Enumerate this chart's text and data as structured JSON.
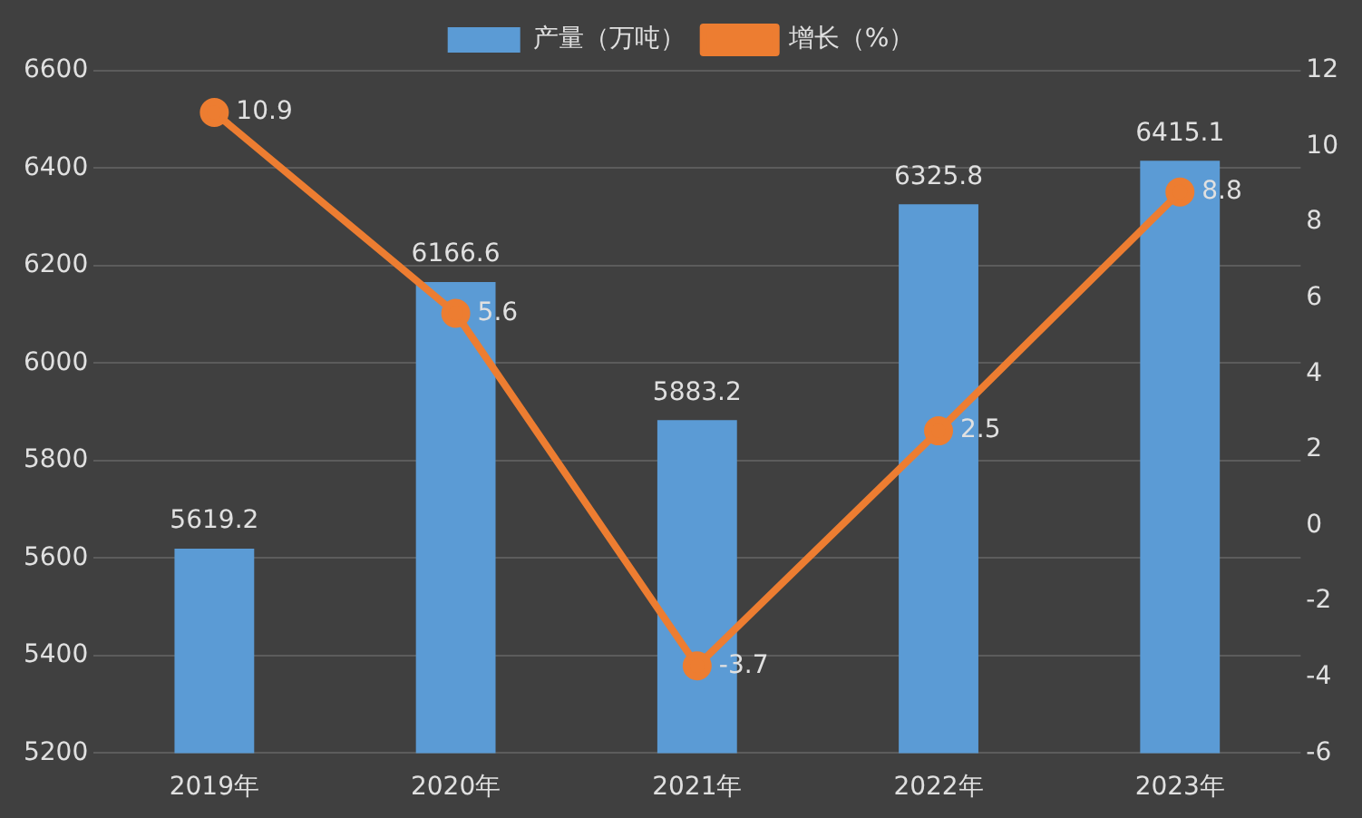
{
  "chart_data": {
    "type": "bar",
    "categories": [
      "2019年",
      "2020年",
      "2021年",
      "2022年",
      "2023年"
    ],
    "series": [
      {
        "name": "产量（万吨）",
        "color": "#5b9bd5",
        "values": [
          5619.2,
          6166.6,
          5883.2,
          6325.8,
          6415.1
        ]
      },
      {
        "name": "增长（%）",
        "type": "line",
        "axis": "y2",
        "color": "#ed7d31",
        "values": [
          10.9,
          5.6,
          -3.7,
          2.5,
          8.8
        ]
      }
    ],
    "ylim": [
      5200,
      6600
    ],
    "yticks": [
      5200,
      5400,
      5600,
      5800,
      6000,
      6200,
      6400,
      6600
    ],
    "y2lim": [
      -6,
      12
    ],
    "y2ticks": [
      -6,
      -4,
      -2,
      0,
      2,
      4,
      6,
      8,
      10,
      12
    ],
    "grid": "y",
    "legend": "top",
    "marker": "circle",
    "line_style": "solid",
    "data_labels": true
  }
}
